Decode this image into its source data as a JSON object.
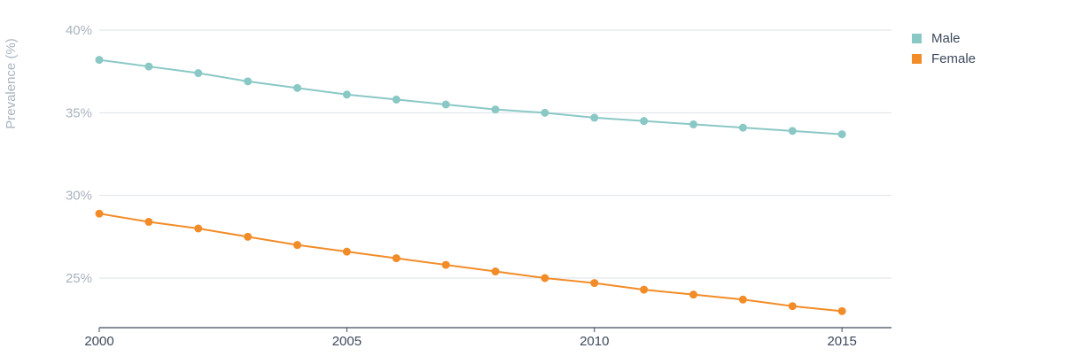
{
  "chart_data": {
    "type": "line",
    "title": "",
    "xlabel": "",
    "ylabel": "Prevalence (%)",
    "x": [
      2000,
      2001,
      2002,
      2003,
      2004,
      2005,
      2006,
      2007,
      2008,
      2009,
      2010,
      2011,
      2012,
      2013,
      2014,
      2015
    ],
    "x_ticks": [
      2000,
      2005,
      2010,
      2015
    ],
    "x_tick_labels": [
      "2000",
      "2005",
      "2010",
      "2015"
    ],
    "xlim": [
      2000,
      2016
    ],
    "y_ticks": [
      25,
      30,
      35,
      40
    ],
    "y_tick_labels": [
      "25%",
      "30%",
      "35%",
      "40%"
    ],
    "ylim": [
      22.0,
      40.0
    ],
    "grid": true,
    "legend_position": "top-right",
    "series": [
      {
        "name": "Male",
        "color": "#8ac8c6",
        "values": [
          38.2,
          37.8,
          37.4,
          36.9,
          36.5,
          36.1,
          35.8,
          35.5,
          35.2,
          35.0,
          34.7,
          34.5,
          34.3,
          34.1,
          33.9,
          33.7
        ]
      },
      {
        "name": "Female",
        "color": "#f28c28",
        "values": [
          28.9,
          28.4,
          28.0,
          27.5,
          27.0,
          26.6,
          26.2,
          25.8,
          25.4,
          25.0,
          24.7,
          24.3,
          24.0,
          23.7,
          23.3,
          23.0
        ]
      }
    ]
  }
}
